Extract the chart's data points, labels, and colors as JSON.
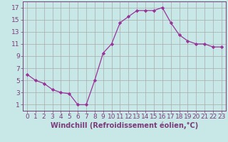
{
  "x": [
    0,
    1,
    2,
    3,
    4,
    5,
    6,
    7,
    8,
    9,
    10,
    11,
    12,
    13,
    14,
    15,
    16,
    17,
    18,
    19,
    20,
    21,
    22,
    23
  ],
  "y": [
    6,
    5,
    4.5,
    3.5,
    3,
    2.8,
    1,
    1,
    5,
    9.5,
    11,
    14.5,
    15.5,
    16.5,
    16.5,
    16.5,
    17,
    14.5,
    12.5,
    11.5,
    11,
    11,
    10.5,
    10.5
  ],
  "line_color": "#993399",
  "marker": "D",
  "marker_size": 2.2,
  "bg_color": "#c8e8e8",
  "grid_color": "#aaaaaa",
  "xlabel": "Windchill (Refroidissement éolien,°C)",
  "xlim": [
    -0.5,
    23.5
  ],
  "ylim": [
    0,
    18
  ],
  "yticks": [
    1,
    3,
    5,
    7,
    9,
    11,
    13,
    15,
    17
  ],
  "xticks": [
    0,
    1,
    2,
    3,
    4,
    5,
    6,
    7,
    8,
    9,
    10,
    11,
    12,
    13,
    14,
    15,
    16,
    17,
    18,
    19,
    20,
    21,
    22,
    23
  ],
  "xtick_labels": [
    "0",
    "1",
    "2",
    "3",
    "4",
    "5",
    "6",
    "7",
    "8",
    "9",
    "10",
    "11",
    "12",
    "13",
    "14",
    "15",
    "16",
    "17",
    "18",
    "19",
    "20",
    "21",
    "22",
    "23"
  ],
  "tick_color": "#7a3b7a",
  "label_color": "#7a3b7a",
  "font_size": 6.5,
  "xlabel_font_size": 7.0,
  "linewidth": 0.9
}
